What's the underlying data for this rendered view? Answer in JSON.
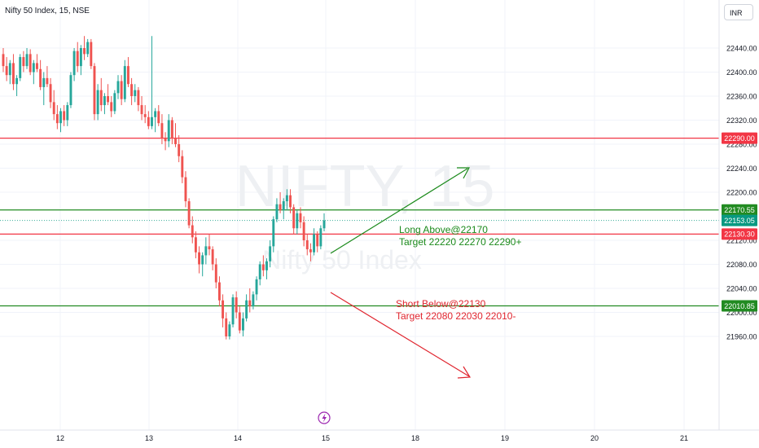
{
  "header": {
    "symbol_title": "Nifty 50 Index, 15, NSE",
    "currency_button": "INR"
  },
  "watermark": {
    "symbol": "NIFTY, 15",
    "name": "Nifty 50 Index"
  },
  "colors": {
    "up": "#26a69a",
    "down": "#ef5350",
    "resistance": "#f23645",
    "support": "#228b22",
    "long_text": "#1b8a1b",
    "short_text": "#e0252f",
    "last_price_bg": "#089981",
    "grid": "#f0f3fa"
  },
  "chart_data": {
    "type": "candlestick",
    "y_axis": {
      "ticks": [
        22440,
        22400,
        22360,
        22320,
        22280,
        22240,
        22200,
        22120,
        22080,
        22040,
        22000,
        21960
      ],
      "ylim": [
        21955,
        22495
      ]
    },
    "x_axis": {
      "ticks": [
        "12",
        "13",
        "14",
        "15",
        "18",
        "19",
        "20",
        "21"
      ]
    },
    "horizontal_levels": [
      {
        "value": 22290.0,
        "label": "22290.00",
        "kind": "resistance"
      },
      {
        "value": 22170.55,
        "label": "22170.55",
        "kind": "support"
      },
      {
        "value": 22153.05,
        "label": "22153.05",
        "kind": "last_price"
      },
      {
        "value": 22130.3,
        "label": "22130.30",
        "kind": "resistance"
      },
      {
        "value": 22010.85,
        "label": "22010.85",
        "kind": "support"
      }
    ],
    "annotations": [
      {
        "kind": "long",
        "lines": [
          "Long Above@22170",
          "Target 22220 22270 22290+"
        ]
      },
      {
        "kind": "short",
        "lines": [
          "Short Below@22130",
          "Target 22080 22030 22010-"
        ]
      }
    ],
    "candles": [
      [
        22430,
        22440,
        22400,
        22410
      ],
      [
        22410,
        22425,
        22385,
        22395
      ],
      [
        22395,
        22420,
        22380,
        22415
      ],
      [
        22415,
        22430,
        22370,
        22380
      ],
      [
        22380,
        22395,
        22360,
        22390
      ],
      [
        22390,
        22430,
        22385,
        22425
      ],
      [
        22425,
        22435,
        22400,
        22410
      ],
      [
        22410,
        22440,
        22405,
        22430
      ],
      [
        22430,
        22438,
        22395,
        22400
      ],
      [
        22400,
        22420,
        22380,
        22415
      ],
      [
        22415,
        22430,
        22400,
        22405
      ],
      [
        22405,
        22420,
        22370,
        22375
      ],
      [
        22375,
        22400,
        22345,
        22390
      ],
      [
        22390,
        22410,
        22375,
        22380
      ],
      [
        22380,
        22390,
        22340,
        22350
      ],
      [
        22350,
        22370,
        22320,
        22330
      ],
      [
        22330,
        22345,
        22305,
        22315
      ],
      [
        22315,
        22340,
        22300,
        22335
      ],
      [
        22335,
        22345,
        22310,
        22320
      ],
      [
        22320,
        22350,
        22310,
        22345
      ],
      [
        22345,
        22400,
        22340,
        22395
      ],
      [
        22395,
        22440,
        22385,
        22435
      ],
      [
        22435,
        22450,
        22400,
        22410
      ],
      [
        22410,
        22445,
        22395,
        22440
      ],
      [
        22440,
        22460,
        22420,
        22430
      ],
      [
        22430,
        22455,
        22425,
        22450
      ],
      [
        22450,
        22455,
        22405,
        22410
      ],
      [
        22410,
        22415,
        22320,
        22330
      ],
      [
        22330,
        22380,
        22320,
        22370
      ],
      [
        22370,
        22390,
        22335,
        22345
      ],
      [
        22345,
        22365,
        22330,
        22360
      ],
      [
        22360,
        22380,
        22345,
        22350
      ],
      [
        22350,
        22360,
        22325,
        22335
      ],
      [
        22335,
        22370,
        22330,
        22365
      ],
      [
        22365,
        22395,
        22355,
        22385
      ],
      [
        22385,
        22395,
        22345,
        22355
      ],
      [
        22355,
        22420,
        22350,
        22410
      ],
      [
        22410,
        22425,
        22375,
        22380
      ],
      [
        22380,
        22390,
        22345,
        22360
      ],
      [
        22360,
        22380,
        22350,
        22370
      ],
      [
        22370,
        22375,
        22335,
        22345
      ],
      [
        22345,
        22360,
        22320,
        22330
      ],
      [
        22330,
        22345,
        22315,
        22325
      ],
      [
        22325,
        22335,
        22305,
        22310
      ],
      [
        22310,
        22460,
        22305,
        22325
      ],
      [
        22325,
        22340,
        22300,
        22335
      ],
      [
        22335,
        22345,
        22310,
        22315
      ],
      [
        22315,
        22330,
        22280,
        22290
      ],
      [
        22290,
        22300,
        22270,
        22285
      ],
      [
        22285,
        22330,
        22275,
        22320
      ],
      [
        22320,
        22325,
        22280,
        22290
      ],
      [
        22290,
        22315,
        22275,
        22280
      ],
      [
        22280,
        22295,
        22250,
        22260
      ],
      [
        22260,
        22270,
        22215,
        22225
      ],
      [
        22225,
        22235,
        22175,
        22185
      ],
      [
        22185,
        22190,
        22140,
        22145
      ],
      [
        22145,
        22160,
        22115,
        22125
      ],
      [
        22125,
        22135,
        22090,
        22100
      ],
      [
        22100,
        22110,
        22065,
        22080
      ],
      [
        22080,
        22100,
        22060,
        22095
      ],
      [
        22095,
        22125,
        22080,
        22110
      ],
      [
        22110,
        22130,
        22095,
        22105
      ],
      [
        22105,
        22110,
        22070,
        22080
      ],
      [
        22080,
        22090,
        22040,
        22050
      ],
      [
        22050,
        22060,
        22010,
        22020
      ],
      [
        22020,
        22030,
        21975,
        21990
      ],
      [
        21990,
        22000,
        21955,
        21960
      ],
      [
        21960,
        21985,
        21955,
        21980
      ],
      [
        21980,
        22030,
        21975,
        22025
      ],
      [
        22025,
        22035,
        21990,
        22000
      ],
      [
        22000,
        22010,
        21965,
        21970
      ],
      [
        21970,
        22000,
        21960,
        21990
      ],
      [
        21990,
        22030,
        21985,
        22020
      ],
      [
        22020,
        22040,
        22000,
        22010
      ],
      [
        22010,
        22035,
        22005,
        22030
      ],
      [
        22030,
        22060,
        22020,
        22055
      ],
      [
        22055,
        22085,
        22045,
        22080
      ],
      [
        22080,
        22095,
        22060,
        22070
      ],
      [
        22070,
        22090,
        22055,
        22085
      ],
      [
        22085,
        22120,
        22075,
        22110
      ],
      [
        22110,
        22160,
        22100,
        22155
      ],
      [
        22155,
        22190,
        22150,
        22180
      ],
      [
        22180,
        22200,
        22165,
        22170
      ],
      [
        22170,
        22190,
        22155,
        22185
      ],
      [
        22185,
        22205,
        22170,
        22195
      ],
      [
        22195,
        22205,
        22165,
        22175
      ],
      [
        22175,
        22180,
        22130,
        22140
      ],
      [
        22140,
        22170,
        22130,
        22165
      ],
      [
        22165,
        22175,
        22140,
        22150
      ],
      [
        22150,
        22160,
        22110,
        22120
      ],
      [
        22120,
        22130,
        22095,
        22105
      ],
      [
        22105,
        22115,
        22085,
        22100
      ],
      [
        22100,
        22140,
        22095,
        22130
      ],
      [
        22130,
        22135,
        22100,
        22110
      ],
      [
        22110,
        22145,
        22105,
        22140
      ],
      [
        22140,
        22165,
        22135,
        22153
      ]
    ]
  }
}
